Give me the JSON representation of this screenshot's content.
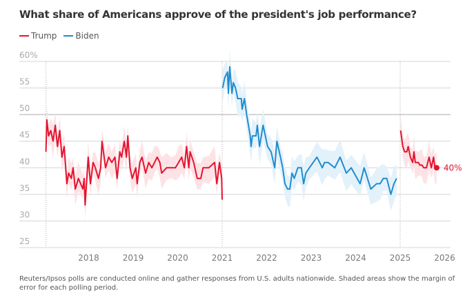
{
  "chart_data": {
    "type": "line",
    "title": "What share of Americans approve of the president's job performance?",
    "xlabel": "",
    "ylabel": "",
    "xlim": [
      2017,
      2026
    ],
    "ylim": [
      25,
      60
    ],
    "x_ticks": [
      "2018",
      "2019",
      "2020",
      "2021",
      "2022",
      "2023",
      "2024",
      "2025",
      "2026"
    ],
    "y_ticks": [
      "60%",
      "55",
      "50",
      "45",
      "40",
      "35",
      "30",
      "25"
    ],
    "y_tick_values": [
      60,
      55,
      50,
      45,
      40,
      35,
      30,
      25
    ],
    "grid": true,
    "legend_placement": "top-left",
    "legend": [
      {
        "name": "Trump",
        "color": "#e4132e"
      },
      {
        "name": "Biden",
        "color": "#1f8ccf"
      }
    ],
    "end_label": "40%",
    "series": [
      {
        "name": "Trump",
        "color": "#e4132e",
        "band_color": "#fde3e6",
        "margin": 2.5,
        "x": [
          2017.04,
          2017.06,
          2017.1,
          2017.15,
          2017.2,
          2017.25,
          2017.3,
          2017.35,
          2017.4,
          2017.45,
          2017.51,
          2017.55,
          2017.61,
          2017.65,
          2017.7,
          2017.77,
          2017.87,
          2017.9,
          2017.92,
          2017.99,
          2018.04,
          2018.1,
          2018.15,
          2018.22,
          2018.27,
          2018.3,
          2018.38,
          2018.45,
          2018.52,
          2018.59,
          2018.64,
          2018.7,
          2018.74,
          2018.8,
          2018.85,
          2018.88,
          2018.93,
          2018.98,
          2019.06,
          2019.09,
          2019.15,
          2019.2,
          2019.28,
          2019.35,
          2019.42,
          2019.48,
          2019.54,
          2019.6,
          2019.64,
          2019.75,
          2019.85,
          2019.95,
          2020.02,
          2020.09,
          2020.15,
          2020.2,
          2020.25,
          2020.28,
          2020.36,
          2020.44,
          2020.52,
          2020.57,
          2020.7,
          2020.83,
          2020.88,
          2020.94,
          2020.99,
          2021.0
        ],
        "y": [
          43,
          49,
          46,
          47,
          45,
          48,
          44,
          47,
          42,
          44,
          37,
          39,
          38,
          40,
          36,
          38,
          36,
          38,
          33,
          42,
          37,
          41,
          40,
          38,
          40,
          45,
          40,
          42,
          41,
          42,
          38,
          43,
          42,
          45,
          42,
          46,
          40,
          38,
          40,
          37,
          41,
          42,
          39,
          41,
          40,
          41,
          42,
          41,
          39,
          40,
          40,
          40,
          41,
          42,
          40,
          44,
          40,
          43,
          41,
          38,
          38,
          40,
          40,
          41,
          37,
          41,
          38,
          34
        ]
      },
      {
        "name": "Biden",
        "color": "#1f8ccf",
        "band_color": "#e3f1fa",
        "margin": 2.8,
        "x": [
          2021.01,
          2021.06,
          2021.12,
          2021.14,
          2021.17,
          2021.22,
          2021.25,
          2021.3,
          2021.35,
          2021.43,
          2021.45,
          2021.5,
          2021.55,
          2021.63,
          2021.65,
          2021.68,
          2021.76,
          2021.79,
          2021.84,
          2021.92,
          2022.02,
          2022.1,
          2022.18,
          2022.23,
          2022.31,
          2022.36,
          2022.41,
          2022.47,
          2022.52,
          2022.57,
          2022.62,
          2022.7,
          2022.78,
          2022.83,
          2022.88,
          2022.96,
          2023.13,
          2023.25,
          2023.3,
          2023.38,
          2023.53,
          2023.65,
          2023.79,
          2023.9,
          2024.1,
          2024.19,
          2024.34,
          2024.47,
          2024.55,
          2024.62,
          2024.7,
          2024.79,
          2024.86,
          2024.92
        ],
        "y": [
          55,
          57,
          58,
          54,
          59,
          54,
          56,
          55,
          53,
          53,
          51,
          53,
          50,
          46,
          44,
          46,
          46,
          48,
          44,
          48,
          44,
          43,
          40,
          45,
          42,
          40,
          37,
          36,
          36,
          39,
          38,
          40,
          40,
          37,
          39,
          40,
          42,
          40,
          41,
          41,
          40,
          42,
          39,
          40,
          37,
          40,
          36,
          37,
          37,
          38,
          38,
          35,
          37,
          38
        ]
      },
      {
        "name": "Trump",
        "color": "#e4132e",
        "band_color": "#fde3e6",
        "margin": 2.5,
        "x": [
          2025.01,
          2025.06,
          2025.1,
          2025.15,
          2025.18,
          2025.23,
          2025.28,
          2025.31,
          2025.34,
          2025.41,
          2025.44,
          2025.49,
          2025.53,
          2025.59,
          2025.65,
          2025.7,
          2025.75,
          2025.78,
          2025.82
        ],
        "y": [
          47,
          44,
          43,
          43,
          44,
          42,
          41,
          43,
          41,
          41,
          40.5,
          40.5,
          40,
          40,
          42,
          40,
          42,
          40,
          40
        ]
      }
    ]
  },
  "footnote": "Reuters/Ipsos polls are conducted online and gather responses from U.S. adults nationwide. Shaded areas show the margin of error for each polling period."
}
